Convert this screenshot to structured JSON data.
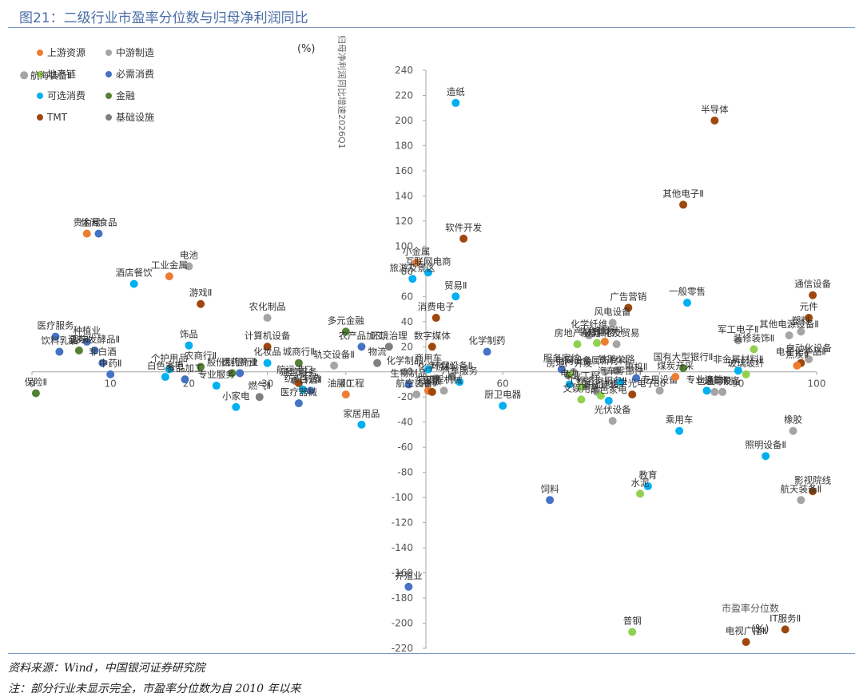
{
  "figure": {
    "title": "图21：二级行业市盈率分位数与归母净利润同比",
    "source_note": "资料来源：Wind，中国银河证券研究院",
    "extra_note": "注：部分行业未显示完全，市盈率分位数为自 2010 年以来"
  },
  "colors": {
    "上游资源": "#ed7d31",
    "中游制造": "#a5a5a5",
    "地产链": "#92d050",
    "必需消费": "#4472c4",
    "可选消费": "#00b0f0",
    "金融": "#548235",
    "TMT": "#9e480e",
    "基础设施": "#7f7f7f"
  },
  "chart_data": {
    "type": "scatter",
    "xlabel": "市盈率分位数",
    "xunit": "(%)",
    "ylabel": "归母净利润同比增速2026Q1",
    "yunit": "(%)",
    "xlim": [
      0,
      100
    ],
    "ylim": [
      -220,
      240
    ],
    "xticks": [
      0,
      10,
      20,
      30,
      40,
      50,
      60,
      70,
      80,
      90,
      100
    ],
    "yticks": [
      240,
      220,
      200,
      180,
      160,
      140,
      120,
      100,
      80,
      60,
      40,
      20,
      0,
      -20,
      -40,
      -60,
      -80,
      -100,
      -120,
      -140,
      -160,
      -180,
      -200,
      -220
    ],
    "grid": false,
    "legend": [
      "上游资源",
      "中游制造",
      "地产链",
      "必需消费",
      "可选消费",
      "金融",
      "TMT",
      "基础设施"
    ],
    "legend_placement": "top-left",
    "points": [
      {
        "label": "造纸",
        "x": 54,
        "y": 214,
        "cat": "可选消费"
      },
      {
        "label": "半导体",
        "x": 87,
        "y": 200,
        "cat": "TMT"
      },
      {
        "label": "其他电子Ⅱ",
        "x": 83,
        "y": 133,
        "cat": "TMT"
      },
      {
        "label": "软件开发",
        "x": 55,
        "y": 106,
        "cat": "TMT"
      },
      {
        "label": "贵金属",
        "x": 7,
        "y": 110,
        "cat": "上游资源"
      },
      {
        "label": "休闲食品",
        "x": 8.5,
        "y": 110,
        "cat": "必需消费"
      },
      {
        "label": "电池",
        "x": 20,
        "y": 84,
        "cat": "中游制造"
      },
      {
        "label": "工业金属",
        "x": 17.5,
        "y": 76,
        "cat": "上游资源"
      },
      {
        "label": "酒店餐饮",
        "x": 13,
        "y": 70,
        "cat": "可选消费"
      },
      {
        "label": "游戏Ⅱ",
        "x": 21.5,
        "y": 54,
        "cat": "TMT"
      },
      {
        "label": "小金属",
        "x": 49,
        "y": 87,
        "cat": "上游资源"
      },
      {
        "label": "互联网电商",
        "x": 50.5,
        "y": 79,
        "cat": "可选消费"
      },
      {
        "label": "旅游及景区",
        "x": 48.5,
        "y": 74,
        "cat": "可选消费"
      },
      {
        "label": "贸易Ⅱ",
        "x": 54,
        "y": 60,
        "cat": "可选消费"
      },
      {
        "label": "消费电子",
        "x": 51.5,
        "y": 43,
        "cat": "TMT"
      },
      {
        "label": "广告营销",
        "x": 76,
        "y": 51,
        "cat": "TMT"
      },
      {
        "label": "一般零售",
        "x": 83.5,
        "y": 55,
        "cat": "可选消费"
      },
      {
        "label": "通信设备",
        "x": 99.5,
        "y": 61,
        "cat": "TMT"
      },
      {
        "label": "元件",
        "x": 99,
        "y": 43,
        "cat": "TMT"
      },
      {
        "label": "塑料",
        "x": 98,
        "y": 32,
        "cat": "中游制造"
      },
      {
        "label": "其他电源设备Ⅱ",
        "x": 96.5,
        "y": 29,
        "cat": "中游制造"
      },
      {
        "label": "军工电子Ⅱ",
        "x": 90,
        "y": 25,
        "cat": "中游制造"
      },
      {
        "label": "风电设备",
        "x": 74,
        "y": 39,
        "cat": "中游制造"
      },
      {
        "label": "化学纤维",
        "x": 71,
        "y": 29,
        "cat": "中游制造"
      },
      {
        "label": "冶钢原料",
        "x": 73,
        "y": 24,
        "cat": "上游资源"
      },
      {
        "label": "房地产服务",
        "x": 69.5,
        "y": 22,
        "cat": "地产链"
      },
      {
        "label": "装修建材",
        "x": 72,
        "y": 23,
        "cat": "地产链"
      },
      {
        "label": "炼化及贸易",
        "x": 74.5,
        "y": 22,
        "cat": "中游制造"
      },
      {
        "label": "国有大型银行Ⅱ",
        "x": 83,
        "y": 3,
        "cat": "金融"
      },
      {
        "label": "装修装饰Ⅱ",
        "x": 92,
        "y": 18,
        "cat": "地产链"
      },
      {
        "label": "自动化设备",
        "x": 99,
        "y": 10,
        "cat": "中游制造"
      },
      {
        "label": "电子化学品Ⅱ",
        "x": 98,
        "y": 7,
        "cat": "TMT"
      },
      {
        "label": "焦炭Ⅱ",
        "x": 97.5,
        "y": 5,
        "cat": "上游资源"
      },
      {
        "label": "玻璃玻纤",
        "x": 91,
        "y": -2,
        "cat": "地产链"
      },
      {
        "label": "非金属材料Ⅱ",
        "x": 90,
        "y": 1,
        "cat": "可选消费"
      },
      {
        "label": "专业连锁Ⅱ",
        "x": 86,
        "y": -15,
        "cat": "可选消费"
      },
      {
        "label": "包装印刷",
        "x": 87,
        "y": -16,
        "cat": "中游制造"
      },
      {
        "label": "医疗服务",
        "x": 3,
        "y": 28,
        "cat": "必需消费"
      },
      {
        "label": "种植业",
        "x": 7,
        "y": 24,
        "cat": "必需消费"
      },
      {
        "label": "饮料乳品",
        "x": 3.5,
        "y": 16,
        "cat": "必需消费"
      },
      {
        "label": "证券Ⅱ",
        "x": 6,
        "y": 17,
        "cat": "金融"
      },
      {
        "label": "调味发酵品Ⅱ",
        "x": 8,
        "y": 17,
        "cat": "必需消费"
      },
      {
        "label": "非白酒",
        "x": 9,
        "y": 7,
        "cat": "必需消费"
      },
      {
        "label": "中药Ⅱ",
        "x": 10,
        "y": -2,
        "cat": "必需消费"
      },
      {
        "label": "保险Ⅱ",
        "x": 0.5,
        "y": -17,
        "cat": "金融"
      },
      {
        "label": "饰品",
        "x": 20,
        "y": 21,
        "cat": "可选消费"
      },
      {
        "label": "农商行Ⅱ",
        "x": 21.5,
        "y": 4,
        "cat": "金融"
      },
      {
        "label": "个护用品",
        "x": 17.5,
        "y": 2,
        "cat": "可选消费"
      },
      {
        "label": "白色家电",
        "x": 17,
        "y": -4,
        "cat": "可选消费"
      },
      {
        "label": "食品加工",
        "x": 19.5,
        "y": -6,
        "cat": "必需消费"
      },
      {
        "label": "股份制银行Ⅱ",
        "x": 25.5,
        "y": -1,
        "cat": "金融"
      },
      {
        "label": "专业服务",
        "x": 23.5,
        "y": -11,
        "cat": "可选消费"
      },
      {
        "label": "农化制品",
        "x": 30,
        "y": 43,
        "cat": "中游制造"
      },
      {
        "label": "计算机设备",
        "x": 30,
        "y": 20,
        "cat": "TMT"
      },
      {
        "label": "化妆品",
        "x": 30,
        "y": 7,
        "cat": "可选消费"
      },
      {
        "label": "医药商业",
        "x": 26.5,
        "y": -1,
        "cat": "必需消费"
      },
      {
        "label": "小家电",
        "x": 26,
        "y": -28,
        "cat": "可选消费"
      },
      {
        "label": "燃气Ⅱ",
        "x": 29,
        "y": -20,
        "cat": "基础设施"
      },
      {
        "label": "城商行Ⅱ",
        "x": 34,
        "y": 7,
        "cat": "金融"
      },
      {
        "label": "航运港口",
        "x": 33.5,
        "y": -7,
        "cat": "基础设施"
      },
      {
        "label": "通信服务",
        "x": 34,
        "y": -9,
        "cat": "TMT"
      },
      {
        "label": "白酒Ⅱ",
        "x": 35.5,
        "y": -15,
        "cat": "必需消费"
      },
      {
        "label": "纺织制造",
        "x": 34.5,
        "y": -14,
        "cat": "可选消费"
      },
      {
        "label": "医疗器械",
        "x": 34,
        "y": -25,
        "cat": "必需消费"
      },
      {
        "label": "多元金融",
        "x": 40,
        "y": 32,
        "cat": "金融"
      },
      {
        "label": "农产品加工",
        "x": 42,
        "y": 20,
        "cat": "必需消费"
      },
      {
        "label": "轨交设备Ⅱ",
        "x": 38.5,
        "y": 5,
        "cat": "中游制造"
      },
      {
        "label": "物流",
        "x": 44,
        "y": 7,
        "cat": "基础设施"
      },
      {
        "label": "环境治理",
        "x": 45.5,
        "y": 20,
        "cat": "基础设施"
      },
      {
        "label": "油服工程",
        "x": 40,
        "y": -18,
        "cat": "上游资源"
      },
      {
        "label": "家居用品",
        "x": 42,
        "y": -42,
        "cat": "可选消费"
      },
      {
        "label": "化学制品",
        "x": 47.5,
        "y": 0,
        "cat": "中游制造"
      },
      {
        "label": "生物制品",
        "x": 48,
        "y": -10,
        "cat": "必需消费"
      },
      {
        "label": "航空装备Ⅱ",
        "x": 49,
        "y": -18,
        "cat": "中游制造"
      },
      {
        "label": "商用车",
        "x": 50.5,
        "y": 2,
        "cat": "可选消费"
      },
      {
        "label": "化学原料",
        "x": 51.5,
        "y": -5,
        "cat": "中游制造"
      },
      {
        "label": "环保设备Ⅱ",
        "x": 53.5,
        "y": -4,
        "cat": "基础设施"
      },
      {
        "label": "汽车服务",
        "x": 54.5,
        "y": -8,
        "cat": "可选消费"
      },
      {
        "label": "特钢Ⅱ",
        "x": 50.5,
        "y": -15,
        "cat": "上游资源"
      },
      {
        "label": "工程机械",
        "x": 52.5,
        "y": -15,
        "cat": "中游制造"
      },
      {
        "label": "出版",
        "x": 51,
        "y": -16,
        "cat": "TMT"
      },
      {
        "label": "数字媒体",
        "x": 51,
        "y": 20,
        "cat": "TMT"
      },
      {
        "label": "化学制药",
        "x": 58,
        "y": 16,
        "cat": "必需消费"
      },
      {
        "label": "厨卫电器",
        "x": 60,
        "y": -27,
        "cat": "可选消费"
      },
      {
        "label": "养殖业",
        "x": 48,
        "y": -171,
        "cat": "必需消费"
      },
      {
        "label": "饲料",
        "x": 66,
        "y": -102,
        "cat": "必需消费"
      },
      {
        "label": "服务家纺",
        "x": 67.5,
        "y": 2,
        "cat": "必需消费"
      },
      {
        "label": "电网设备",
        "x": 69,
        "y": 0,
        "cat": "中游制造"
      },
      {
        "label": "房地产开发",
        "x": 68.5,
        "y": -2,
        "cat": "地产链"
      },
      {
        "label": "电力",
        "x": 68.5,
        "y": -10,
        "cat": "可选消费"
      },
      {
        "label": "专业工程",
        "x": 70,
        "y": -12,
        "cat": "地产链"
      },
      {
        "label": "文娱用品",
        "x": 70,
        "y": -22,
        "cat": "地产链"
      },
      {
        "label": "工程咨询服务Ⅱ",
        "x": 72,
        "y": -16,
        "cat": "中游制造"
      },
      {
        "label": "基础建设",
        "x": 72.5,
        "y": -19,
        "cat": "地产链"
      },
      {
        "label": "金属新材料",
        "x": 73,
        "y": 0,
        "cat": "中游制造"
      },
      {
        "label": "铁路公路",
        "x": 74.5,
        "y": 1,
        "cat": "基础设施"
      },
      {
        "label": "汽车零部件",
        "x": 75,
        "y": -8,
        "cat": "可选消费"
      },
      {
        "label": "黑色家电",
        "x": 73.5,
        "y": -23,
        "cat": "可选消费"
      },
      {
        "label": "光伏设备",
        "x": 74,
        "y": -39,
        "cat": "中游制造"
      },
      {
        "label": "电机Ⅱ",
        "x": 77,
        "y": -5,
        "cat": "必需消费"
      },
      {
        "label": "光学光电子",
        "x": 76.5,
        "y": -18,
        "cat": "TMT"
      },
      {
        "label": "专用设备",
        "x": 80,
        "y": -15,
        "cat": "中游制造"
      },
      {
        "label": "煤炭开采",
        "x": 82,
        "y": -4,
        "cat": "上游资源"
      },
      {
        "label": "乘用车",
        "x": 82.5,
        "y": -47,
        "cat": "可选消费"
      },
      {
        "label": "通用设备",
        "x": 88,
        "y": -16,
        "cat": "中游制造"
      },
      {
        "label": "教育",
        "x": 78.5,
        "y": -91,
        "cat": "可选消费"
      },
      {
        "label": "水泥",
        "x": 77.5,
        "y": -97,
        "cat": "地产链"
      },
      {
        "label": "照明设备Ⅱ",
        "x": 93.5,
        "y": -67,
        "cat": "可选消费"
      },
      {
        "label": "橡胶",
        "x": 97,
        "y": -47,
        "cat": "中游制造"
      },
      {
        "label": "影视院线",
        "x": 99.5,
        "y": -95,
        "cat": "TMT"
      },
      {
        "label": "航天装备Ⅱ",
        "x": 98,
        "y": -102,
        "cat": "中游制造"
      },
      {
        "label": "普钢",
        "x": 76.5,
        "y": -207,
        "cat": "地产链"
      },
      {
        "label": "IT服务Ⅱ",
        "x": 96,
        "y": -205,
        "cat": "TMT"
      },
      {
        "label": "电视广播Ⅱ",
        "x": 91,
        "y": -215,
        "cat": "TMT"
      },
      {
        "label": "航海装备Ⅱ",
        "x": -1,
        "y": 236,
        "cat": "中游制造"
      }
    ]
  }
}
